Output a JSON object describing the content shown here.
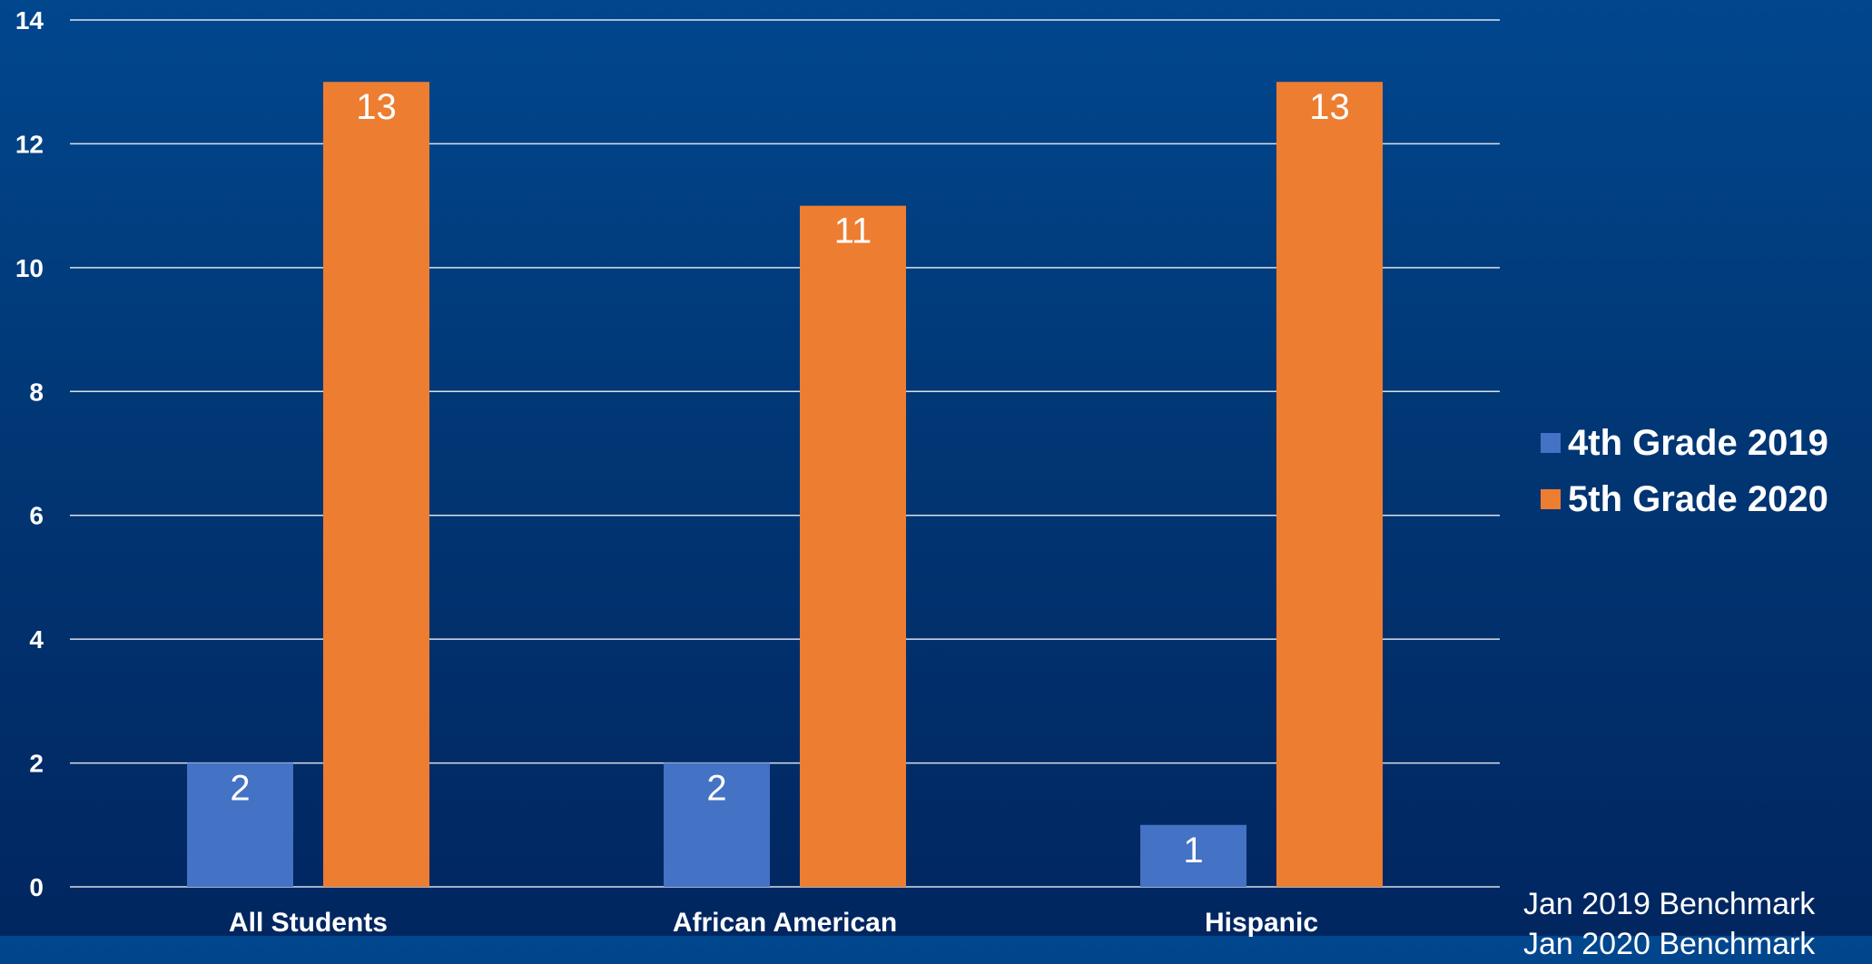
{
  "chart_data": {
    "type": "bar",
    "categories": [
      "All Students",
      "African American",
      "Hispanic"
    ],
    "series": [
      {
        "name": "4th Grade 2019",
        "values": [
          2,
          2,
          1
        ],
        "color": "#4472c4"
      },
      {
        "name": "5th Grade 2020",
        "values": [
          13,
          11,
          13
        ],
        "color": "#ed7d31"
      }
    ],
    "ylim": [
      0,
      14
    ],
    "yticks": [
      0,
      2,
      4,
      6,
      8,
      10,
      12,
      14
    ],
    "data_labels": true,
    "grid": true,
    "legend_position": "right",
    "title": "",
    "xlabel": "",
    "ylabel": ""
  },
  "notes": [
    "Jan 2019 Benchmark",
    "Jan 2020 Benchmark"
  ],
  "colors": {
    "background_top": "#01478e",
    "background_bottom": "#012660",
    "gridline": "#ffffff",
    "text": "#ffffff"
  }
}
